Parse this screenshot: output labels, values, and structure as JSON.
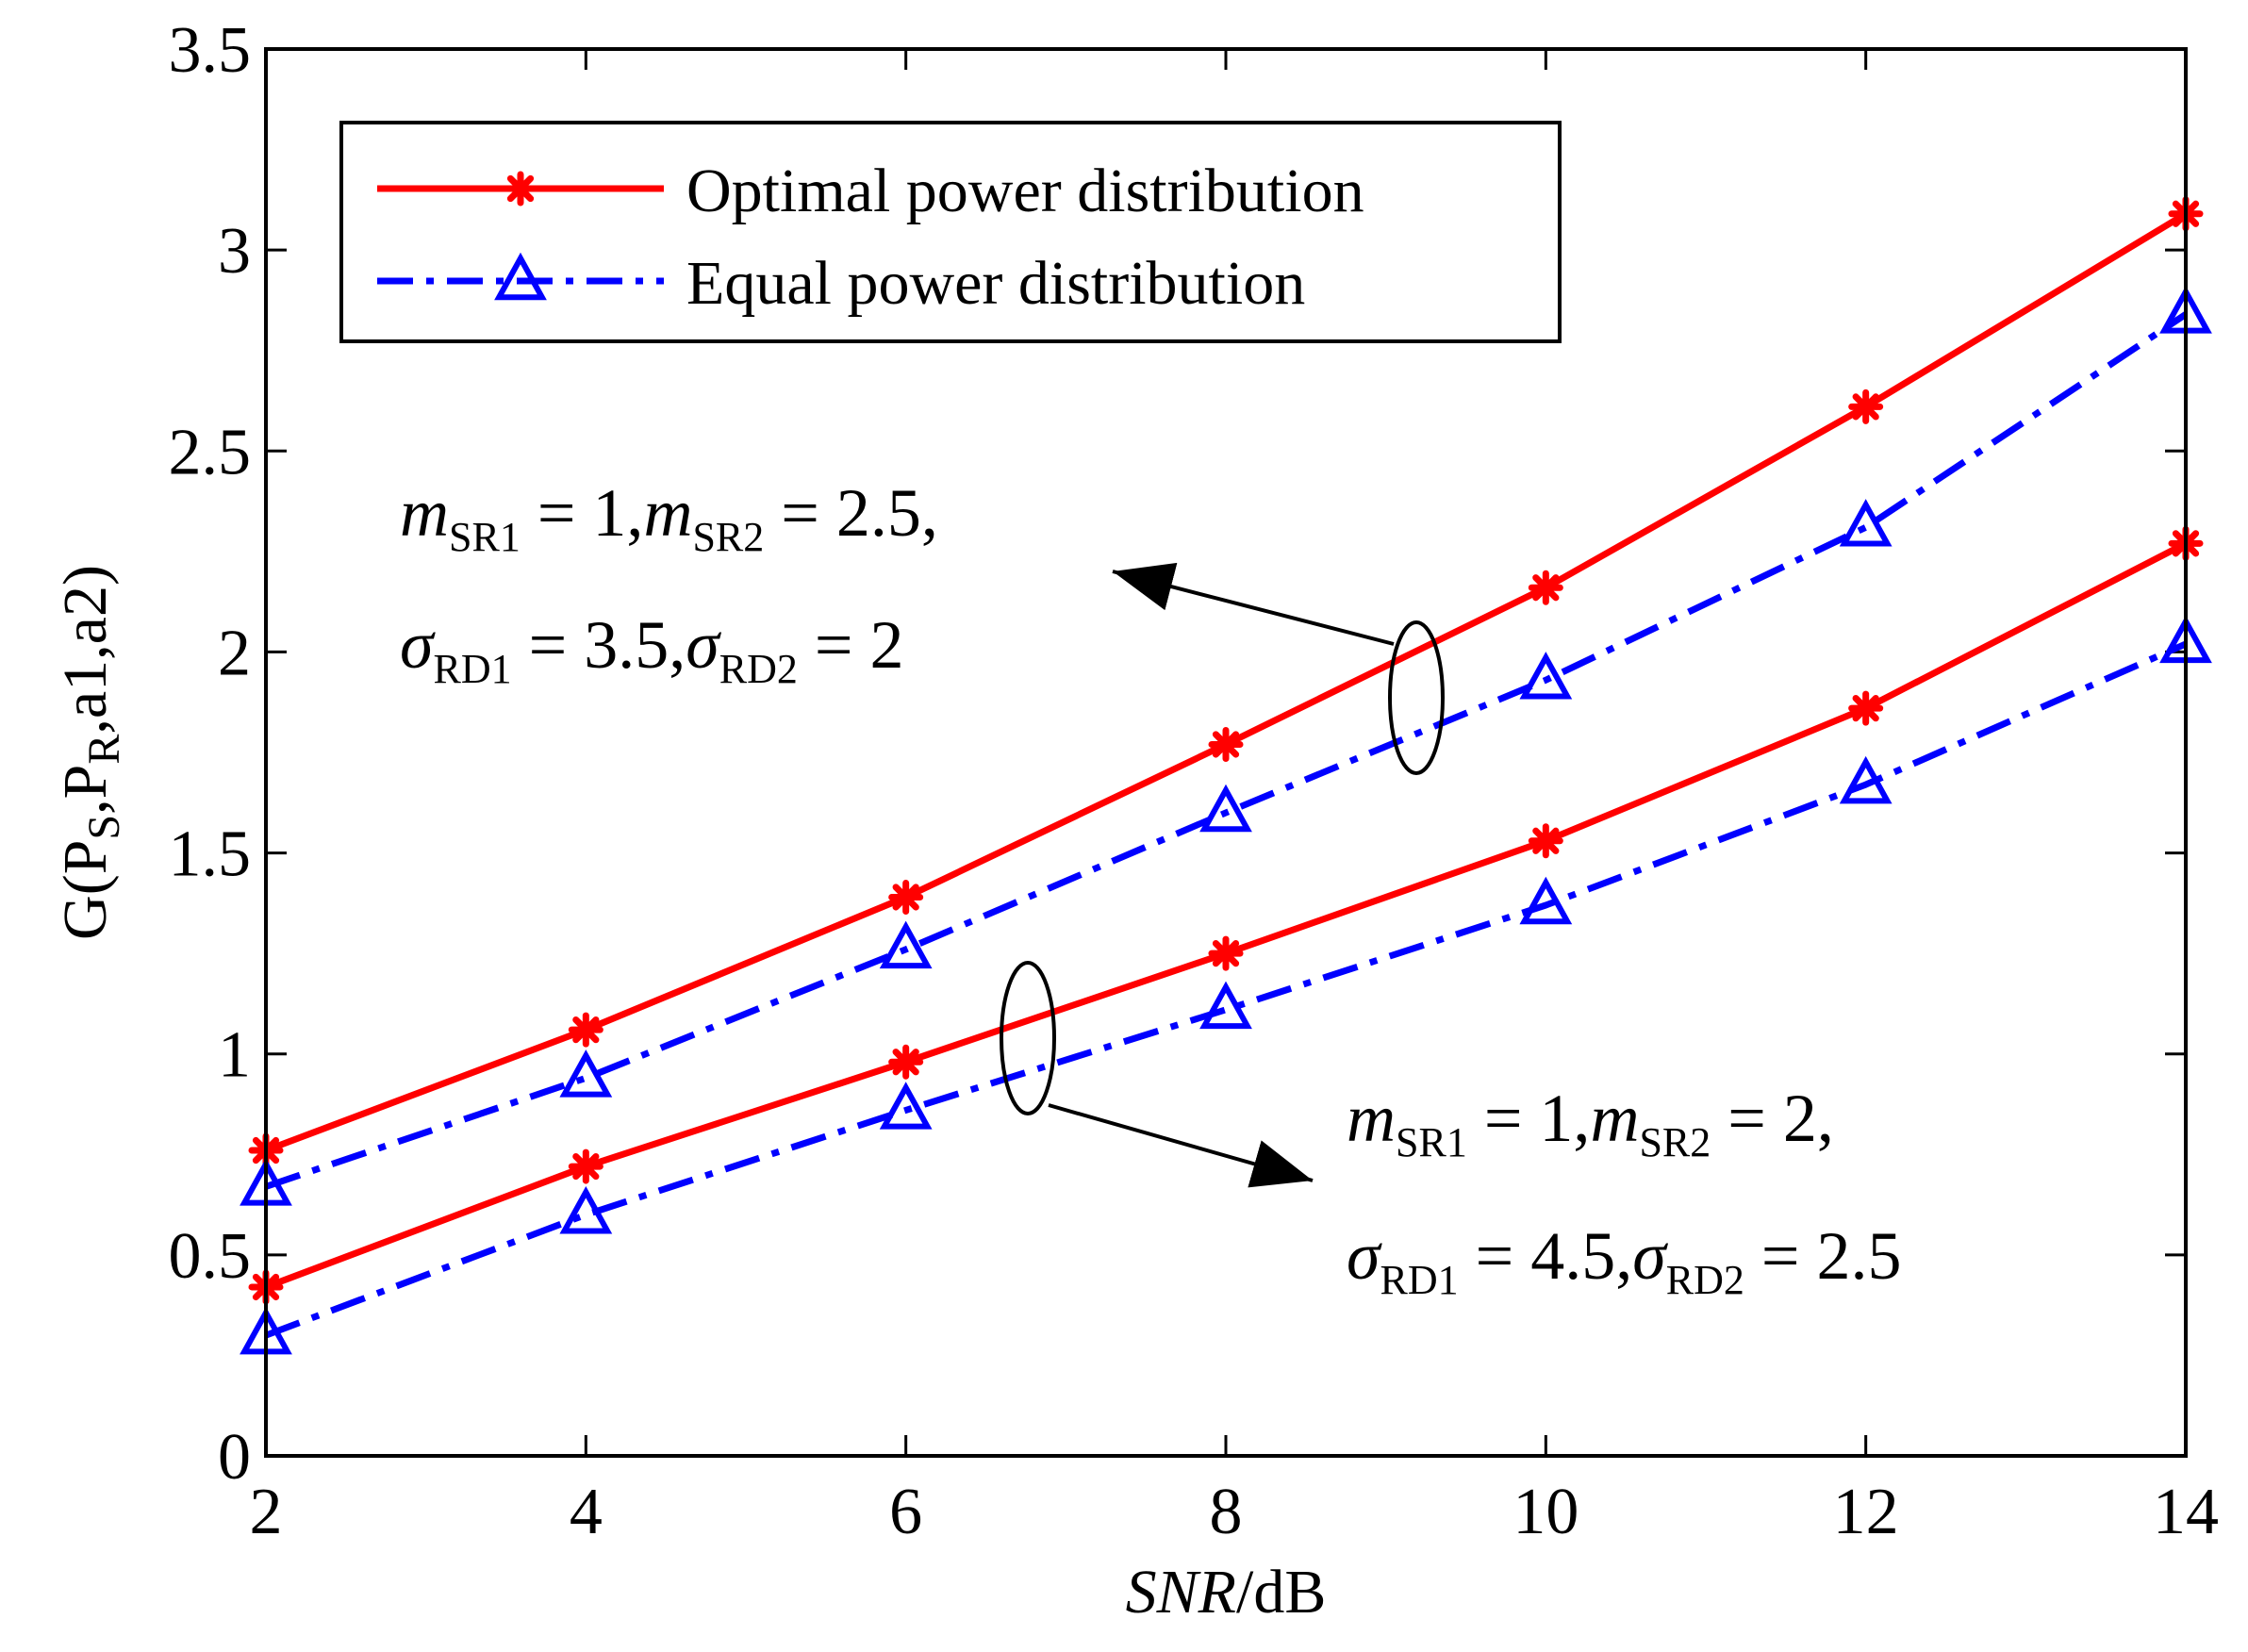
{
  "chart_data": {
    "type": "line",
    "title": "",
    "xlabel": "SNR/dB",
    "xlabel_parts": {
      "italic": "SNR",
      "normal": "/dB"
    },
    "ylabel": "G(P_S,P_R,a1,a2)",
    "ylabel_parts": {
      "g": "G(P",
      "s": "S",
      "comma": ",P",
      "r": "R",
      "rest": ",a1,a2)"
    },
    "x": [
      2,
      4,
      6,
      8,
      10,
      12,
      14
    ],
    "xlim": [
      2,
      14
    ],
    "ylim": [
      0,
      3.5
    ],
    "xticks": [
      "2",
      "4",
      "6",
      "8",
      "10",
      "12",
      "14"
    ],
    "yticks": [
      "0",
      "0.5",
      "1",
      "1.5",
      "2",
      "2.5",
      "3",
      "3.5"
    ],
    "grid": false,
    "legend_position": "top-left",
    "legend": [
      {
        "label": "Optimal power distribution",
        "color": "#ff0000",
        "style": "solid",
        "marker": "asterisk"
      },
      {
        "label": "Equal power distribution",
        "color": "#0000ff",
        "style": "dashdot",
        "marker": "triangle"
      }
    ],
    "series": [
      {
        "name": "Optimal power distribution",
        "group": "m_SR1=1, m_SR2=2.5, σ_RD1=3.5, σ_RD2=2",
        "color": "#ff0000",
        "style": "solid",
        "marker": "asterisk",
        "values": [
          0.76,
          1.06,
          1.39,
          1.77,
          2.16,
          2.61,
          3.09
        ]
      },
      {
        "name": "Equal power distribution",
        "group": "m_SR1=1, m_SR2=2.5, σ_RD1=3.5, σ_RD2=2",
        "color": "#0000ff",
        "style": "dashdot",
        "marker": "triangle",
        "values": [
          0.67,
          0.94,
          1.26,
          1.6,
          1.93,
          2.31,
          2.84
        ]
      },
      {
        "name": "Optimal power distribution",
        "group": "m_SR1=1, m_SR2=2, σ_RD1=4.5, σ_RD2=2.5",
        "color": "#ff0000",
        "style": "solid",
        "marker": "asterisk",
        "values": [
          0.42,
          0.72,
          0.98,
          1.25,
          1.53,
          1.86,
          2.27
        ]
      },
      {
        "name": "Equal power distribution",
        "group": "m_SR1=1, m_SR2=2, σ_RD1=4.5, σ_RD2=2.5",
        "color": "#0000ff",
        "style": "dashdot",
        "marker": "triangle",
        "values": [
          0.3,
          0.6,
          0.86,
          1.11,
          1.37,
          1.67,
          2.02
        ]
      }
    ],
    "annotations": [
      {
        "line1": [
          {
            "text": "m",
            "italic": true
          },
          {
            "text": "SR1",
            "sub": true
          },
          {
            "text": " = 1,"
          },
          {
            "text": "m",
            "italic": true
          },
          {
            "text": "SR2",
            "sub": true
          },
          {
            "text": " = 2.5,"
          }
        ],
        "line2": [
          {
            "text": "σ",
            "italic": true
          },
          {
            "text": "RD1",
            "sub": true
          },
          {
            "text": " = 3.5,"
          },
          {
            "text": "σ",
            "italic": true
          },
          {
            "text": "RD2",
            "sub": true
          },
          {
            "text": " = 2"
          }
        ]
      },
      {
        "line1": [
          {
            "text": "m",
            "italic": true
          },
          {
            "text": "SR1",
            "sub": true
          },
          {
            "text": " = 1,"
          },
          {
            "text": "m",
            "italic": true
          },
          {
            "text": "SR2",
            "sub": true
          },
          {
            "text": " = 2,"
          }
        ],
        "line2": [
          {
            "text": "σ",
            "italic": true
          },
          {
            "text": "RD1",
            "sub": true
          },
          {
            "text": " = 4.5,"
          },
          {
            "text": "σ",
            "italic": true
          },
          {
            "text": "RD2",
            "sub": true
          },
          {
            "text": " = 2.5"
          }
        ]
      }
    ]
  }
}
